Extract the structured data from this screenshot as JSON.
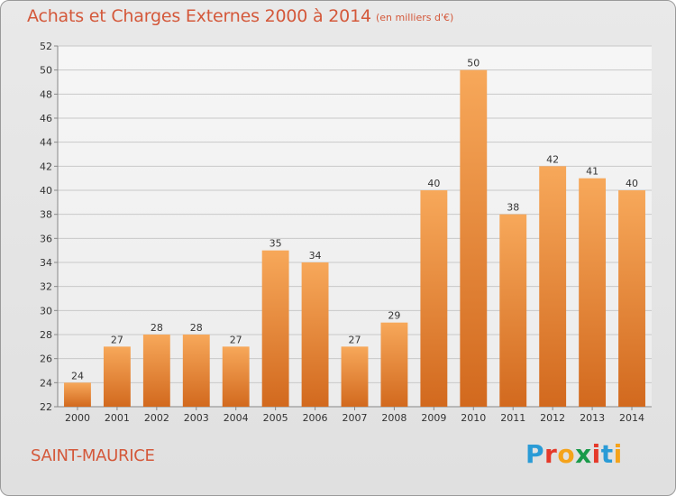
{
  "header": {
    "title": "Achats et Charges Externes 2000 à 2014",
    "subtitle": "(en milliers d'€)"
  },
  "footer": {
    "place": "SAINT-MAURICE",
    "logo_letters": [
      "P",
      "r",
      "o",
      "x",
      "i",
      "t",
      "i"
    ],
    "logo_colors": [
      "#2a9bd6",
      "#e5392a",
      "#f5a31a",
      "#1a9a4a",
      "#e5392a",
      "#2a9bd6",
      "#f5a31a"
    ]
  },
  "colors": {
    "bar_light": "#f7a85a",
    "bar_dark": "#d2691e",
    "title": "#d4583a",
    "grid": "#c8c8c8"
  },
  "chart_data": {
    "type": "bar",
    "title": "Achats et Charges Externes 2000 à 2014",
    "subtitle": "(en milliers d'€)",
    "categories": [
      "2000",
      "2001",
      "2002",
      "2003",
      "2004",
      "2005",
      "2006",
      "2007",
      "2008",
      "2009",
      "2010",
      "2011",
      "2012",
      "2013",
      "2014"
    ],
    "values": [
      24,
      27,
      28,
      28,
      27,
      35,
      34,
      27,
      29,
      40,
      50,
      38,
      42,
      41,
      40
    ],
    "ylim": [
      22,
      52
    ],
    "yticks": [
      22,
      24,
      26,
      28,
      30,
      32,
      34,
      36,
      38,
      40,
      42,
      44,
      46,
      48,
      50,
      52
    ],
    "xlabel": "",
    "ylabel": "",
    "grid": true,
    "data_labels": true
  }
}
